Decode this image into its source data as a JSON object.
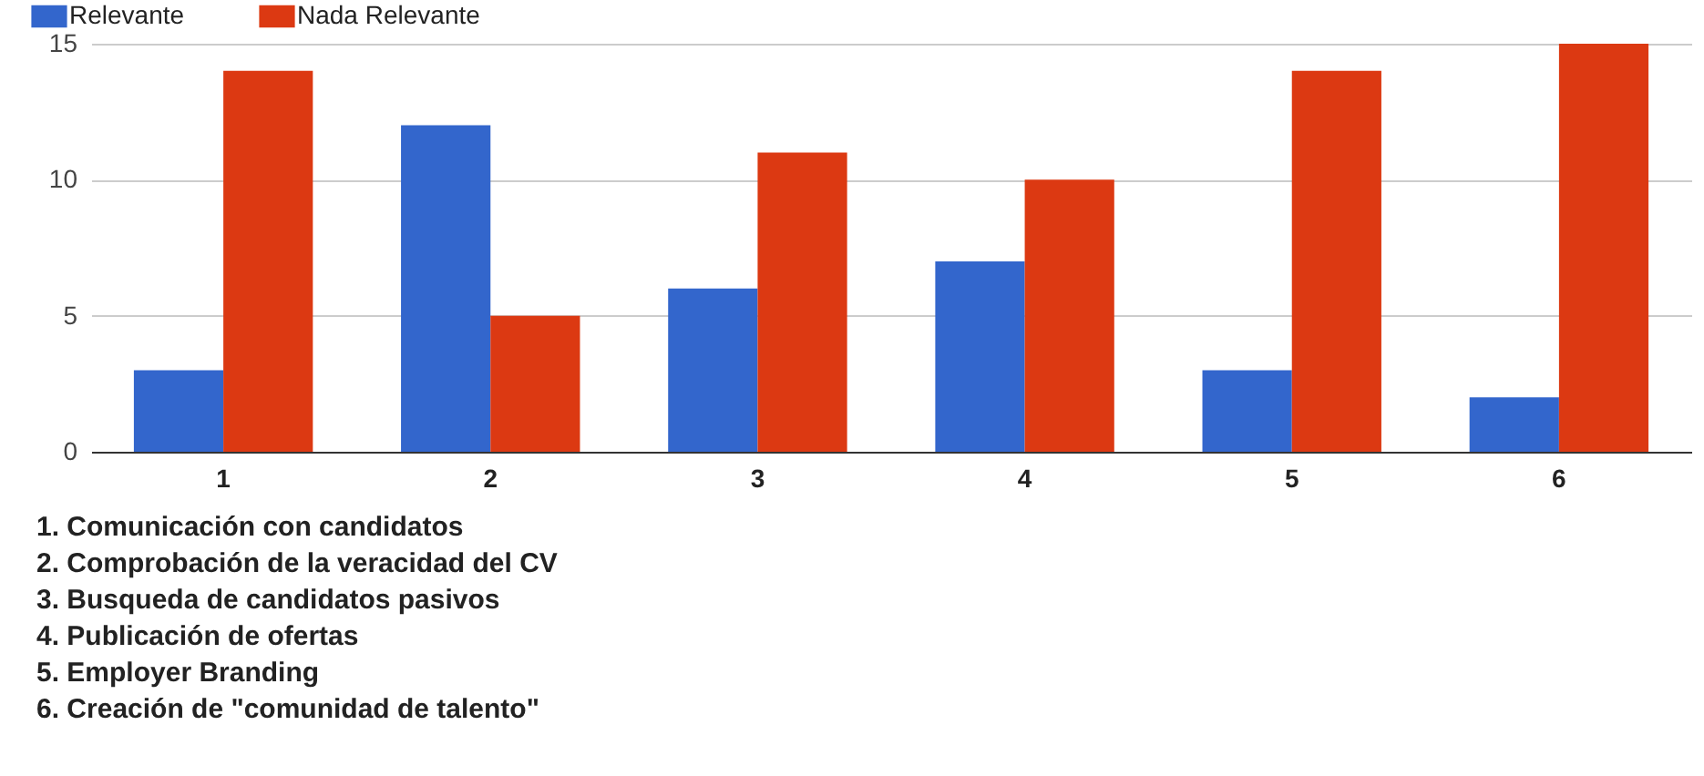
{
  "chart_data": {
    "type": "bar",
    "categories": [
      "1",
      "2",
      "3",
      "4",
      "5",
      "6"
    ],
    "series": [
      {
        "name": "Relevante",
        "color": "#3366cc",
        "values": [
          3,
          12,
          6,
          7,
          3,
          2
        ]
      },
      {
        "name": "Nada Relevante",
        "color": "#dc3912",
        "values": [
          14,
          5,
          11,
          10,
          14,
          15
        ]
      }
    ],
    "ylim": [
      0,
      15
    ],
    "yticks": [
      0,
      5,
      10,
      15
    ],
    "grid": "y",
    "legend": "top left",
    "annotations": [
      "1. Comunicación con candidatos",
      "2. Comprobación de la veracidad del CV",
      "3. Busqueda de candidatos pasivos",
      "4. Publicación de ofertas",
      "5. Employer Branding",
      "6. Creación de \"comunidad de talento\""
    ]
  }
}
